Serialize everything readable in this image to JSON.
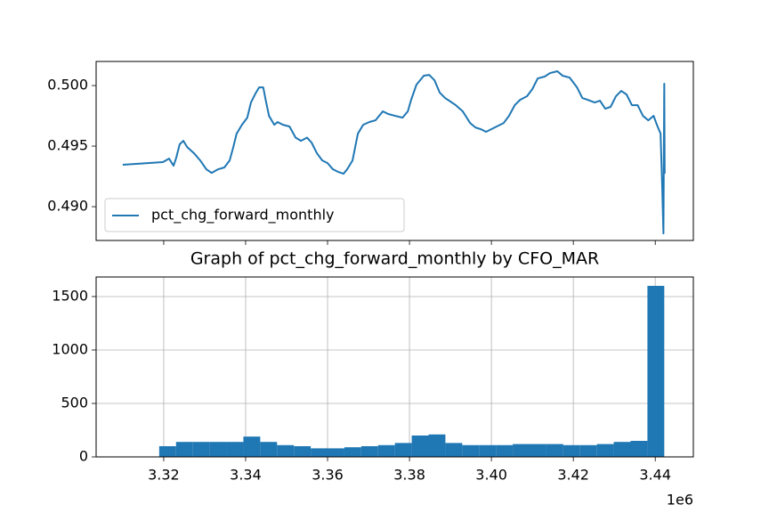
{
  "chart_data": [
    {
      "type": "line",
      "x": [
        3310000,
        3319800,
        3321300,
        3322400,
        3323000,
        3323900,
        3324800,
        3325700,
        3327400,
        3328900,
        3330400,
        3331700,
        3333300,
        3334800,
        3336100,
        3337000,
        3337800,
        3339100,
        3340400,
        3341300,
        3342400,
        3343300,
        3344300,
        3344800,
        3345700,
        3347000,
        3347800,
        3349100,
        3350700,
        3352200,
        3353500,
        3355000,
        3356100,
        3357400,
        3358700,
        3360000,
        3361300,
        3362600,
        3363900,
        3364800,
        3366100,
        3367400,
        3368700,
        3370200,
        3371700,
        3373500,
        3374800,
        3376500,
        3378300,
        3379600,
        3380400,
        3381700,
        3383500,
        3384800,
        3386100,
        3387400,
        3388700,
        3390000,
        3391300,
        3393000,
        3394800,
        3396100,
        3397400,
        3398700,
        3400000,
        3401300,
        3403000,
        3404300,
        3405700,
        3407000,
        3408700,
        3410000,
        3411300,
        3413000,
        3414300,
        3416100,
        3417400,
        3419100,
        3420900,
        3422200,
        3423500,
        3425200,
        3426500,
        3427800,
        3429100,
        3430400,
        3431700,
        3433000,
        3434300,
        3435700,
        3437000,
        3438300,
        3439600,
        3440400,
        3441300,
        3441700,
        3442000,
        3442200,
        3442300
      ],
      "series": [
        {
          "name": "pct_chg_forward_monthly",
          "color": "#1f77b4",
          "values": [
            0.49346,
            0.49368,
            0.49397,
            0.49338,
            0.49397,
            0.49515,
            0.49544,
            0.49493,
            0.49441,
            0.49382,
            0.49309,
            0.49279,
            0.49309,
            0.49324,
            0.49382,
            0.49493,
            0.49603,
            0.49676,
            0.49735,
            0.4986,
            0.49934,
            0.49985,
            0.49985,
            0.49897,
            0.4975,
            0.49676,
            0.49699,
            0.49676,
            0.49662,
            0.4957,
            0.49544,
            0.4957,
            0.49529,
            0.49441,
            0.49382,
            0.4936,
            0.49309,
            0.49287,
            0.49272,
            0.49309,
            0.49382,
            0.49603,
            0.49676,
            0.49699,
            0.49713,
            0.49787,
            0.49765,
            0.4975,
            0.49735,
            0.49787,
            0.49882,
            0.50007,
            0.50081,
            0.50088,
            0.50044,
            0.49941,
            0.49897,
            0.49868,
            0.49838,
            0.49787,
            0.49691,
            0.49654,
            0.4964,
            0.49618,
            0.4964,
            0.49662,
            0.49691,
            0.4975,
            0.49838,
            0.49882,
            0.49912,
            0.49971,
            0.50059,
            0.50074,
            0.50103,
            0.50118,
            0.50081,
            0.50066,
            0.49985,
            0.49897,
            0.49882,
            0.4986,
            0.49875,
            0.49809,
            0.49824,
            0.49912,
            0.49956,
            0.49926,
            0.49838,
            0.49838,
            0.4975,
            0.49713,
            0.4975,
            0.49676,
            0.49603,
            0.49162,
            0.48779,
            0.50015,
            0.49272
          ]
        }
      ],
      "xlim": [
        3303500,
        3449300
      ],
      "xticks": [
        3320000,
        3340000,
        3360000,
        3380000,
        3400000,
        3420000,
        3440000
      ],
      "ylim": [
        0.48721,
        0.50199
      ],
      "yticks": [
        {
          "value": 0.49,
          "label": "0.490"
        },
        {
          "value": 0.495,
          "label": "0.495"
        },
        {
          "value": 0.5,
          "label": "0.500"
        }
      ],
      "legend": "lower left",
      "grid": false
    },
    {
      "type": "histogram",
      "title": "Graph of pct_chg_forward_monthly by CFO_MAR",
      "bins": [
        3318900,
        3323010,
        3327120,
        3331230,
        3335340,
        3339450,
        3343560,
        3347670,
        3351780,
        3355890,
        3360000,
        3364110,
        3368220,
        3372330,
        3376440,
        3380550,
        3384660,
        3388770,
        3392880,
        3396990,
        3401100,
        3405210,
        3409320,
        3413430,
        3417540,
        3421650,
        3425760,
        3429870,
        3433980,
        3438090,
        3442200
      ],
      "values": [
        100,
        140,
        140,
        140,
        140,
        190,
        140,
        110,
        100,
        80,
        80,
        90,
        100,
        110,
        130,
        200,
        210,
        130,
        110,
        110,
        110,
        120,
        120,
        120,
        110,
        110,
        120,
        140,
        150,
        1600
      ],
      "color": "#1f77b4",
      "xlim": [
        3303500,
        3449300
      ],
      "xticks": [
        {
          "value": 3320000,
          "label": "3.32"
        },
        {
          "value": 3340000,
          "label": "3.34"
        },
        {
          "value": 3360000,
          "label": "3.36"
        },
        {
          "value": 3380000,
          "label": "3.38"
        },
        {
          "value": 3400000,
          "label": "3.40"
        },
        {
          "value": 3420000,
          "label": "3.42"
        },
        {
          "value": 3440000,
          "label": "3.44"
        }
      ],
      "x_offset_text": "1e6",
      "ylim": [
        0,
        1683
      ],
      "yticks": [
        0,
        500,
        1000,
        1500
      ],
      "grid": true
    }
  ]
}
